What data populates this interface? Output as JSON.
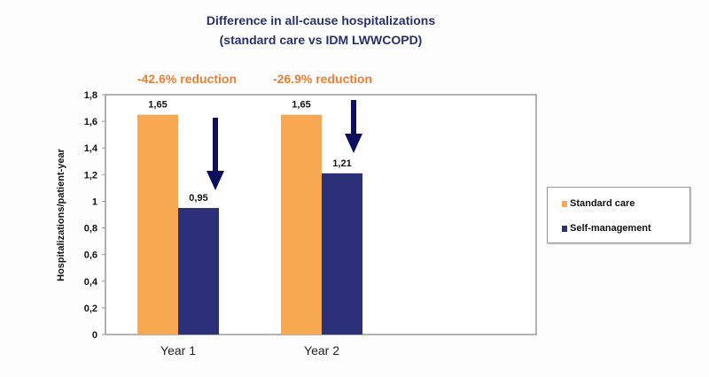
{
  "chart_data": {
    "type": "bar",
    "title": "Difference in all-cause hospitalizations",
    "subtitle": "(standard care vs IDM LWWCOPD)",
    "categories": [
      "Year 1",
      "Year 2"
    ],
    "series": [
      {
        "name": "Standard care",
        "values": [
          1.65,
          1.65
        ],
        "labels": [
          "1,65",
          "1,65"
        ],
        "color": "#f9a852"
      },
      {
        "name": "Self-management",
        "values": [
          0.95,
          1.21
        ],
        "labels": [
          "0,95",
          "1,21"
        ],
        "color": "#2c3078"
      }
    ],
    "annotations": [
      "-42.6% reduction",
      "-26.9% reduction"
    ],
    "annotation_color": "#f47c2c",
    "xlabel": "",
    "ylabel": "Hospitalizations/patient-year",
    "ylim": [
      0,
      1.8
    ],
    "yticks": [
      0,
      0.2,
      0.4,
      0.6,
      0.8,
      1,
      1.2,
      1.4,
      1.6,
      1.8
    ],
    "ytick_labels": [
      "0",
      "0,2",
      "0,4",
      "0,6",
      "0,8",
      "1",
      "1,2",
      "1,4",
      "1,6",
      "1,8"
    ],
    "grid": false,
    "legend_position": "right",
    "arrow_color": "#0d0f5e"
  }
}
